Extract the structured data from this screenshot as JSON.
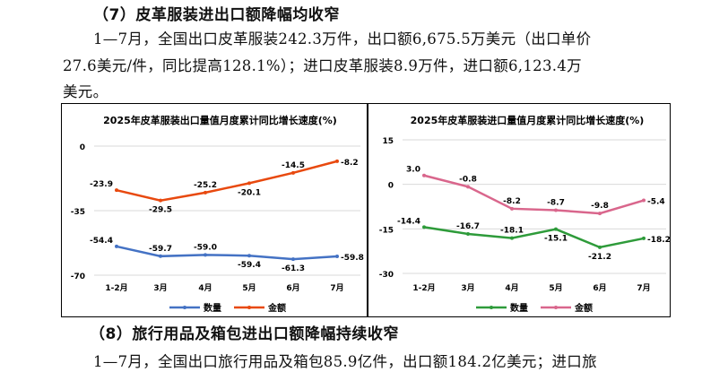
{
  "section7": {
    "heading": "（7）皮革服装进出口额降幅均收窄",
    "lines": [
      "1—7月，全国出口皮革服装242.3万件，出口额6,675.5万美元（出口单价",
      "27.6美元/件，同比提高128.1%）；进口皮革服装8.9万件，进口额6,123.4万",
      "美元。"
    ]
  },
  "chart_data": [
    {
      "type": "line",
      "title": "2025年皮革服装出口量值月度累计同比增长速度(%)",
      "categories": [
        "1-2月",
        "3月",
        "4月",
        "5月",
        "6月",
        "7月"
      ],
      "yticks": [
        "0",
        "-35",
        "-70"
      ],
      "ylim": [
        -70,
        0
      ],
      "grid": true,
      "legend": "bottom",
      "series": [
        {
          "name": "数量",
          "color": "#4472C4",
          "values": [
            -54.4,
            -59.7,
            -59.0,
            -59.4,
            -61.3,
            -59.8
          ],
          "labels": [
            "-54.4",
            "-59.7",
            "-59.0",
            "-59.4",
            "-61.3",
            "-59.8"
          ]
        },
        {
          "name": "金额",
          "color": "#E8490F",
          "values": [
            -23.9,
            -29.5,
            -25.2,
            -20.1,
            -14.5,
            -8.2
          ],
          "labels": [
            "-23.9",
            "-29.5",
            "-25.2",
            "-20.1",
            "-14.5",
            "-8.2"
          ]
        }
      ]
    },
    {
      "type": "line",
      "title": "2025年皮革服装进口量值月度累计同比增长速度(%)",
      "categories": [
        "1-2月",
        "3月",
        "4月",
        "5月",
        "6月",
        "7月"
      ],
      "yticks": [
        "15",
        "0",
        "-15",
        "-30"
      ],
      "ylim": [
        -30,
        15
      ],
      "grid": true,
      "legend": "bottom",
      "series": [
        {
          "name": "数量",
          "color": "#2E9B3A",
          "values": [
            -14.4,
            -16.7,
            -18.1,
            -15.1,
            -21.2,
            -18.2
          ],
          "labels": [
            "-14.4",
            "-16.7",
            "-18.1",
            "-15.1",
            "-21.2",
            "-18.2"
          ]
        },
        {
          "name": "金额",
          "color": "#D9668C",
          "values": [
            3.0,
            -0.8,
            -8.2,
            -8.7,
            -9.8,
            -5.4
          ],
          "labels": [
            "3.0",
            "-0.8",
            "-8.2",
            "-8.7",
            "-9.8",
            "-5.4"
          ]
        }
      ]
    }
  ],
  "section8": {
    "heading": "（8）旅行用品及箱包进出口额降幅持续收窄",
    "lines": [
      "1—7月，全国出口旅行用品及箱包85.9亿件，出口额184.2亿美元；进口旅"
    ]
  }
}
